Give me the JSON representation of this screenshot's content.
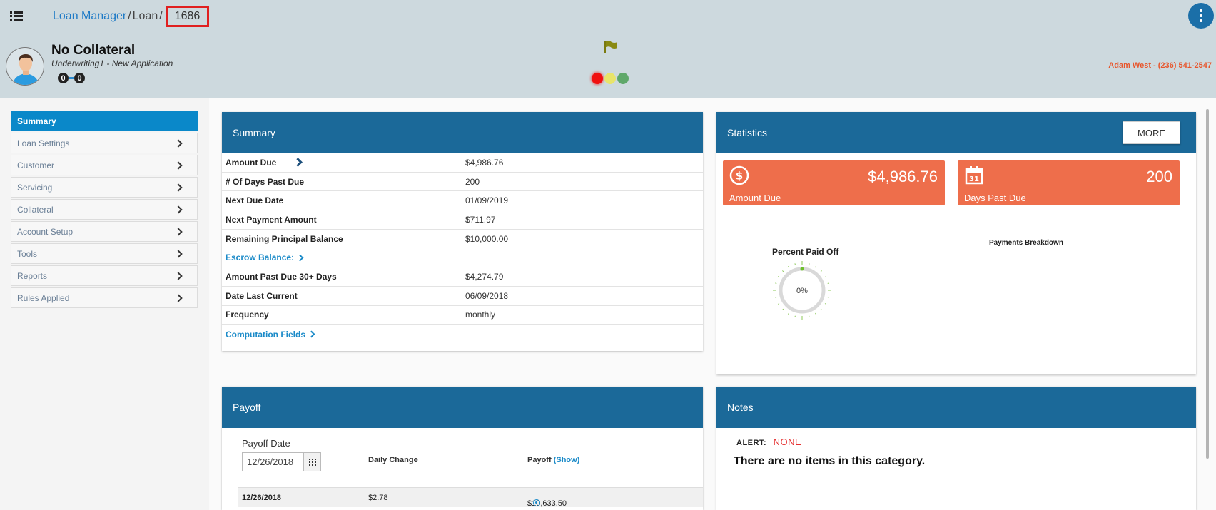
{
  "header": {
    "breadcrumb": {
      "root": "Loan Manager",
      "middle": "Loan",
      "loan_id": "1686"
    },
    "borrower": {
      "name": "No Collateral",
      "status": "Underwriting1 - New Application",
      "count_left": "0",
      "count_right": "0"
    },
    "contact": "Adam West - (236) 541-2547",
    "lights": [
      "red",
      "yellow",
      "green"
    ],
    "colors": {
      "header_bg": "#cdd9de",
      "accent": "#1b6999",
      "alert": "#e8552b"
    }
  },
  "sidebar": {
    "items": [
      {
        "label": "Summary"
      },
      {
        "label": "Loan Settings"
      },
      {
        "label": "Customer"
      },
      {
        "label": "Servicing"
      },
      {
        "label": "Collateral"
      },
      {
        "label": "Account Setup"
      },
      {
        "label": "Tools"
      },
      {
        "label": "Reports"
      },
      {
        "label": "Rules Applied"
      }
    ]
  },
  "summary": {
    "title": "Summary",
    "rows": [
      {
        "label": "Amount Due",
        "value": "$4,986.76"
      },
      {
        "label": "# Of Days Past Due",
        "value": "200"
      },
      {
        "label": "Next Due Date",
        "value": "01/09/2019"
      },
      {
        "label": "Next Payment Amount",
        "value": "$711.97"
      },
      {
        "label": "Remaining Principal Balance",
        "value": "$10,000.00"
      },
      {
        "label": "Escrow Balance:",
        "value": ""
      },
      {
        "label": "Amount Past Due 30+ Days",
        "value": "$4,274.79"
      },
      {
        "label": "Date Last Current",
        "value": "06/09/2018"
      },
      {
        "label": "Frequency",
        "value": "monthly"
      },
      {
        "label": "Computation Fields",
        "value": ""
      }
    ]
  },
  "statistics": {
    "title": "Statistics",
    "more_label": "MORE",
    "amount_due": {
      "value": "$4,986.76",
      "caption": "Amount Due"
    },
    "days_past_due": {
      "value": "200",
      "caption": "Days Past Due"
    },
    "percent_title": "Percent Paid Off",
    "percent_value": "0%",
    "percent_fraction": 0,
    "breakdown_title": "Payments Breakdown"
  },
  "payoff": {
    "title": "Payoff",
    "date_label": "Payoff Date",
    "date_value": "12/26/2018",
    "col_daily": "Daily Change",
    "col_payoff": "Payoff",
    "show_label": "(Show)",
    "row": {
      "date": "12/26/2018",
      "daily": "$2.78",
      "payoff": "$10,633.50"
    }
  },
  "notes": {
    "title": "Notes",
    "alert_label": "ALERT:",
    "alert_value": "NONE",
    "empty_message": "There are no items in this category."
  }
}
